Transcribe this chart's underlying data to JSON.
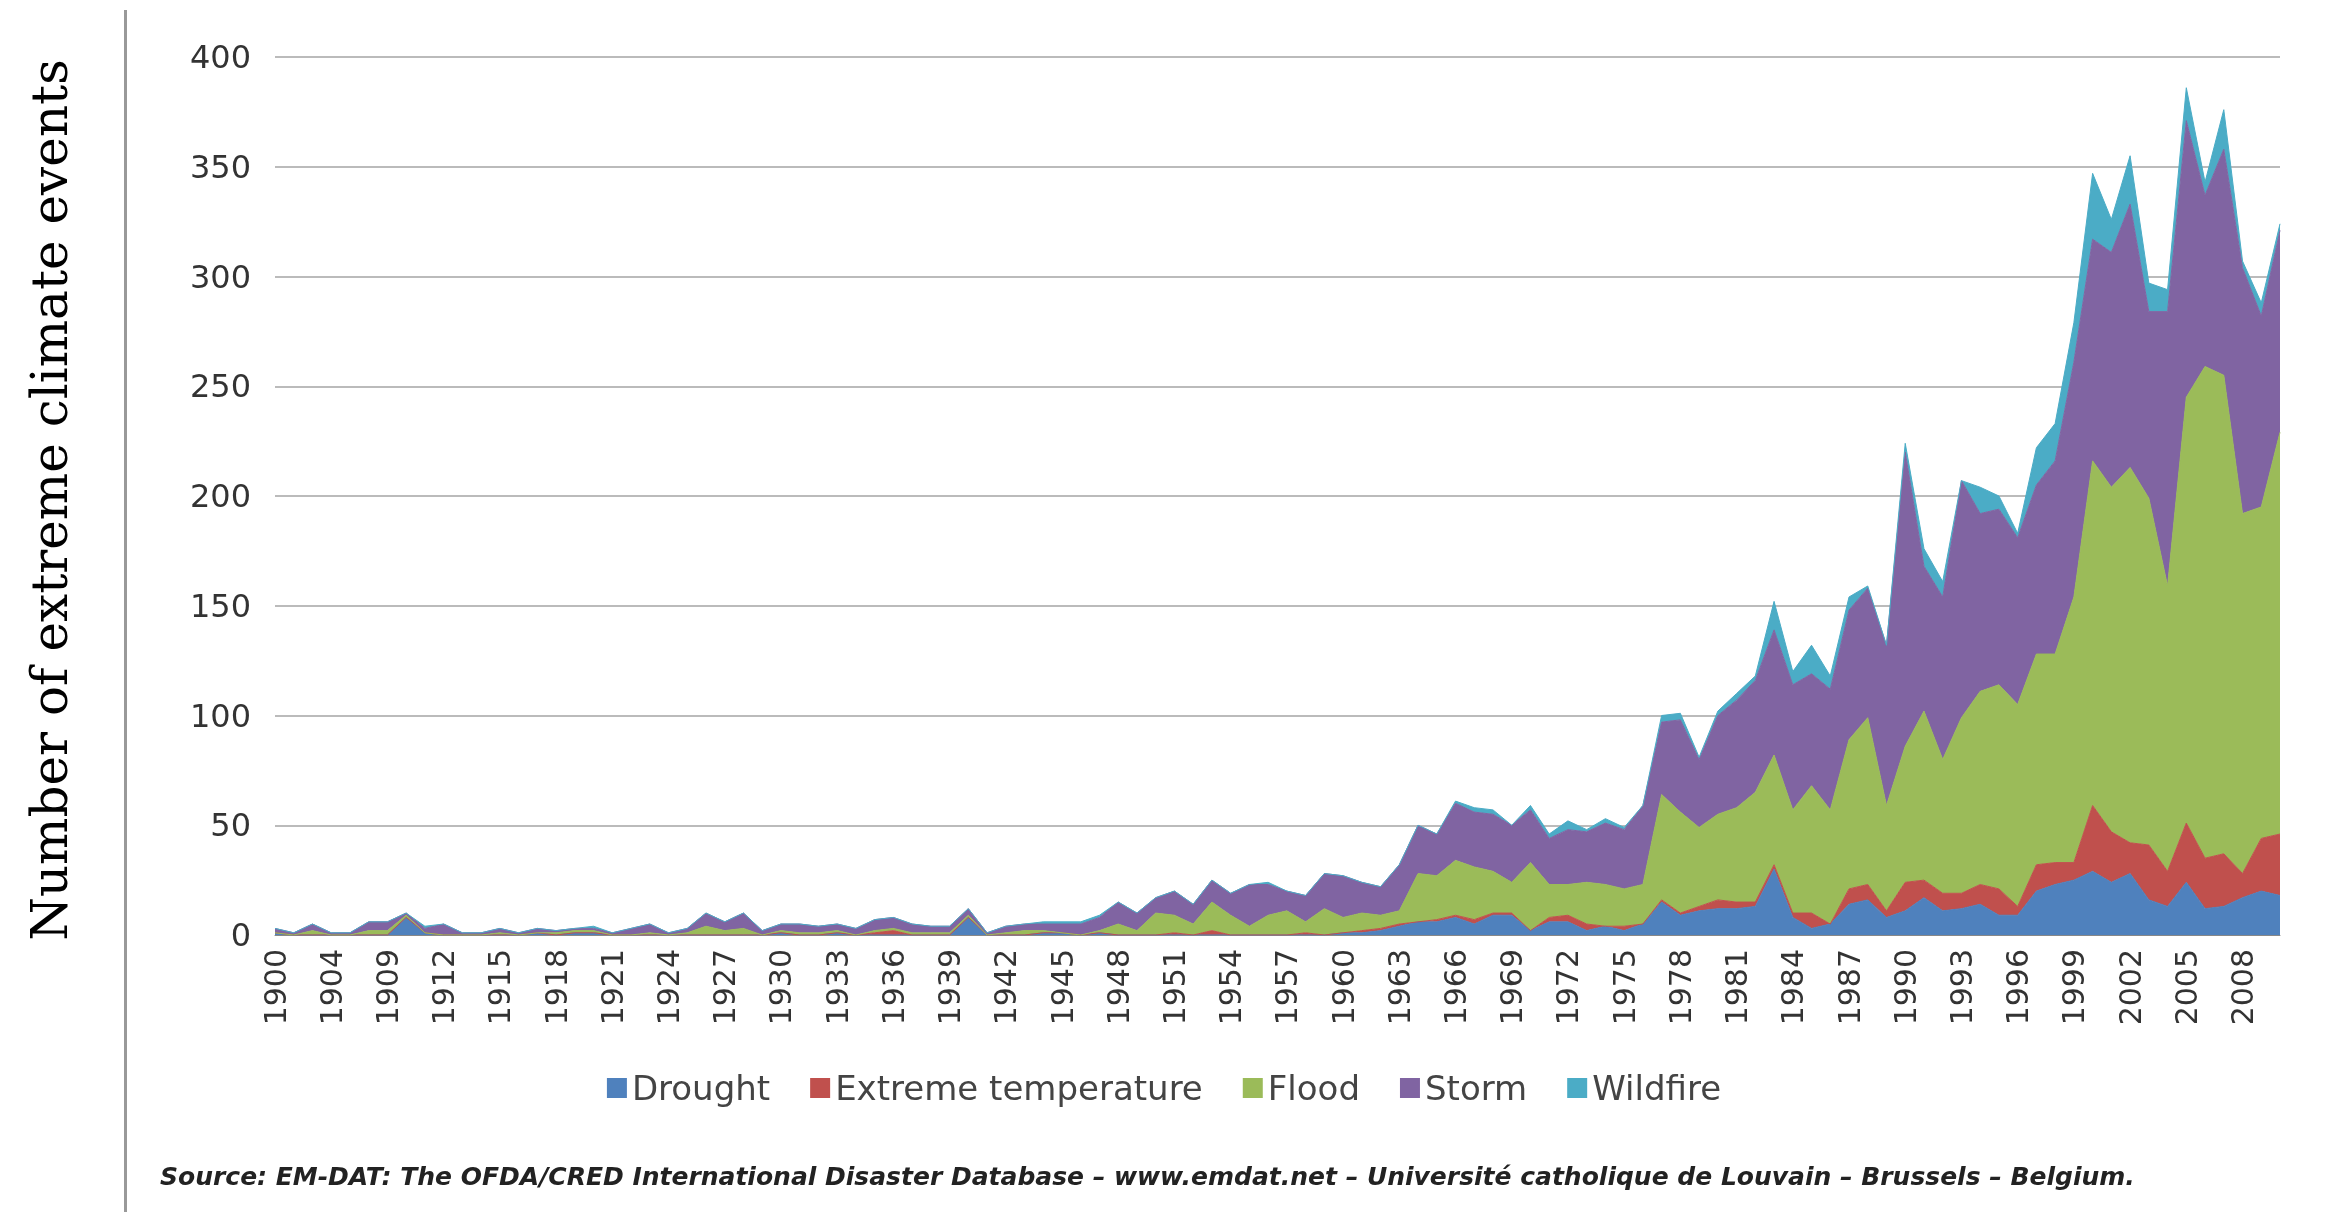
{
  "chart_data": {
    "type": "area",
    "stacked": true,
    "ylabel": "Number of extreme climate events",
    "categories": [
      "1900",
      null,
      null,
      "1904",
      null,
      null,
      "1909",
      null,
      null,
      "1912",
      null,
      null,
      "1915",
      null,
      null,
      "1918",
      null,
      null,
      "1921",
      null,
      null,
      "1924",
      null,
      null,
      "1927",
      null,
      null,
      "1930",
      null,
      null,
      "1933",
      null,
      null,
      "1936",
      null,
      null,
      "1939",
      null,
      null,
      "1942",
      null,
      null,
      "1945",
      null,
      null,
      "1948",
      null,
      null,
      "1951",
      null,
      null,
      "1954",
      null,
      null,
      "1957",
      null,
      null,
      "1960",
      null,
      null,
      "1963",
      null,
      null,
      "1966",
      null,
      null,
      "1969",
      null,
      null,
      "1972",
      null,
      null,
      "1975",
      null,
      null,
      "1978",
      null,
      null,
      "1981",
      null,
      null,
      "1984",
      null,
      null,
      "1987",
      null,
      null,
      "1990",
      null,
      null,
      "1993",
      null,
      null,
      "1996",
      null,
      null,
      "1999",
      null,
      null,
      "2002",
      null,
      null,
      "2005",
      null,
      null,
      "2008",
      null,
      null
    ],
    "series": [
      {
        "name": "Drought",
        "color": "#4f81bd",
        "values": [
          1,
          0,
          0,
          0,
          0,
          0,
          0,
          8,
          1,
          0,
          0,
          0,
          0,
          0,
          1,
          0,
          1,
          1,
          0,
          0,
          0,
          0,
          0,
          0,
          0,
          0,
          0,
          1,
          0,
          0,
          1,
          0,
          0,
          0,
          0,
          0,
          0,
          8,
          0,
          0,
          0,
          1,
          1,
          0,
          1,
          0,
          0,
          0,
          0,
          0,
          0,
          0,
          0,
          0,
          0,
          0,
          0,
          1,
          1,
          2,
          4,
          6,
          6,
          8,
          5,
          9,
          9,
          2,
          6,
          6,
          2,
          4,
          2,
          5,
          15,
          9,
          11,
          12,
          12,
          13,
          30,
          8,
          3,
          5,
          14,
          16,
          8,
          11,
          17,
          11,
          12,
          14,
          9,
          9,
          20,
          23,
          25,
          29,
          24,
          28,
          16,
          13,
          24,
          12,
          13,
          17,
          20,
          18
        ]
      },
      {
        "name": "Extreme temperature",
        "color": "#c0504d",
        "values": [
          0,
          0,
          0,
          0,
          0,
          0,
          0,
          0,
          0,
          0,
          0,
          0,
          0,
          0,
          0,
          0,
          0,
          0,
          0,
          0,
          0,
          0,
          0,
          0,
          0,
          0,
          0,
          0,
          0,
          0,
          0,
          0,
          1,
          2,
          0,
          0,
          0,
          0,
          0,
          0,
          0,
          0,
          0,
          0,
          0,
          0,
          0,
          0,
          1,
          0,
          2,
          0,
          0,
          0,
          0,
          1,
          0,
          0,
          1,
          1,
          1,
          0,
          1,
          1,
          2,
          1,
          1,
          0,
          2,
          3,
          3,
          0,
          2,
          0,
          1,
          1,
          2,
          4,
          3,
          2,
          2,
          2,
          7,
          0,
          7,
          7,
          3,
          13,
          8,
          8,
          7,
          9,
          12,
          4,
          12,
          10,
          8,
          30,
          23,
          14,
          25,
          16,
          27,
          23,
          24,
          11,
          24,
          28
        ]
      },
      {
        "name": "Flood",
        "color": "#9bbb59",
        "values": [
          0,
          0,
          2,
          0,
          0,
          2,
          2,
          1,
          0,
          0,
          0,
          0,
          1,
          0,
          0,
          1,
          1,
          1,
          0,
          0,
          1,
          0,
          1,
          4,
          2,
          3,
          0,
          1,
          1,
          1,
          1,
          0,
          1,
          1,
          1,
          1,
          1,
          1,
          0,
          1,
          2,
          1,
          0,
          0,
          1,
          5,
          2,
          10,
          8,
          5,
          13,
          9,
          4,
          9,
          11,
          5,
          12,
          7,
          8,
          6,
          6,
          22,
          20,
          25,
          24,
          19,
          14,
          31,
          15,
          14,
          19,
          19,
          17,
          18,
          48,
          46,
          36,
          39,
          43,
          50,
          50,
          47,
          58,
          52,
          68,
          76,
          48,
          62,
          77,
          61,
          80,
          88,
          93,
          92,
          96,
          95,
          121,
          157,
          157,
          171,
          158,
          130,
          194,
          224,
          218,
          164,
          151,
          183
        ]
      },
      {
        "name": "Storm",
        "color": "#8064a2",
        "values": [
          2,
          1,
          3,
          1,
          1,
          4,
          4,
          1,
          2,
          5,
          1,
          1,
          2,
          1,
          2,
          1,
          1,
          1,
          1,
          3,
          4,
          1,
          2,
          6,
          4,
          7,
          2,
          3,
          4,
          3,
          3,
          3,
          5,
          5,
          4,
          3,
          3,
          3,
          1,
          3,
          3,
          3,
          4,
          5,
          6,
          10,
          8,
          7,
          11,
          9,
          10,
          10,
          19,
          14,
          9,
          12,
          16,
          19,
          14,
          13,
          21,
          22,
          19,
          26,
          25,
          26,
          26,
          24,
          21,
          25,
          23,
          28,
          27,
          36,
          33,
          42,
          31,
          45,
          49,
          51,
          57,
          57,
          51,
          55,
          59,
          59,
          73,
          134,
          66,
          74,
          108,
          81,
          80,
          76,
          77,
          88,
          107,
          101,
          107,
          120,
          85,
          125,
          126,
          78,
          103,
          112,
          87,
          92
        ]
      },
      {
        "name": "Wildfire",
        "color": "#4bacc6",
        "values": [
          0,
          0,
          0,
          0,
          0,
          0,
          0,
          0,
          1,
          0,
          0,
          0,
          0,
          0,
          0,
          0,
          0,
          1,
          0,
          0,
          0,
          0,
          0,
          0,
          0,
          0,
          0,
          0,
          0,
          0,
          0,
          0,
          0,
          0,
          0,
          0,
          0,
          0,
          0,
          0,
          0,
          1,
          1,
          1,
          1,
          0,
          0,
          0,
          0,
          0,
          0,
          0,
          0,
          1,
          0,
          0,
          0,
          0,
          0,
          0,
          0,
          0,
          0,
          1,
          2,
          2,
          0,
          2,
          2,
          4,
          1,
          2,
          1,
          0,
          3,
          3,
          1,
          2,
          3,
          2,
          13,
          6,
          13,
          6,
          6,
          1,
          0,
          4,
          8,
          7,
          0,
          12,
          6,
          2,
          17,
          17,
          18,
          30,
          15,
          22,
          13,
          10,
          15,
          6,
          18,
          3,
          6,
          3
        ]
      }
    ],
    "ylim": [
      0,
      400
    ],
    "yticks": [
      0,
      50,
      100,
      150,
      200,
      250,
      300,
      350,
      400
    ],
    "grid": "y",
    "legend": "bottom",
    "marker": "none",
    "annotations": [
      "Source:  EM-DAT: The OFDA/CRED International Disaster Database – www.emdat.net – Université catholique de Louvain – Brussels – Belgium."
    ]
  }
}
